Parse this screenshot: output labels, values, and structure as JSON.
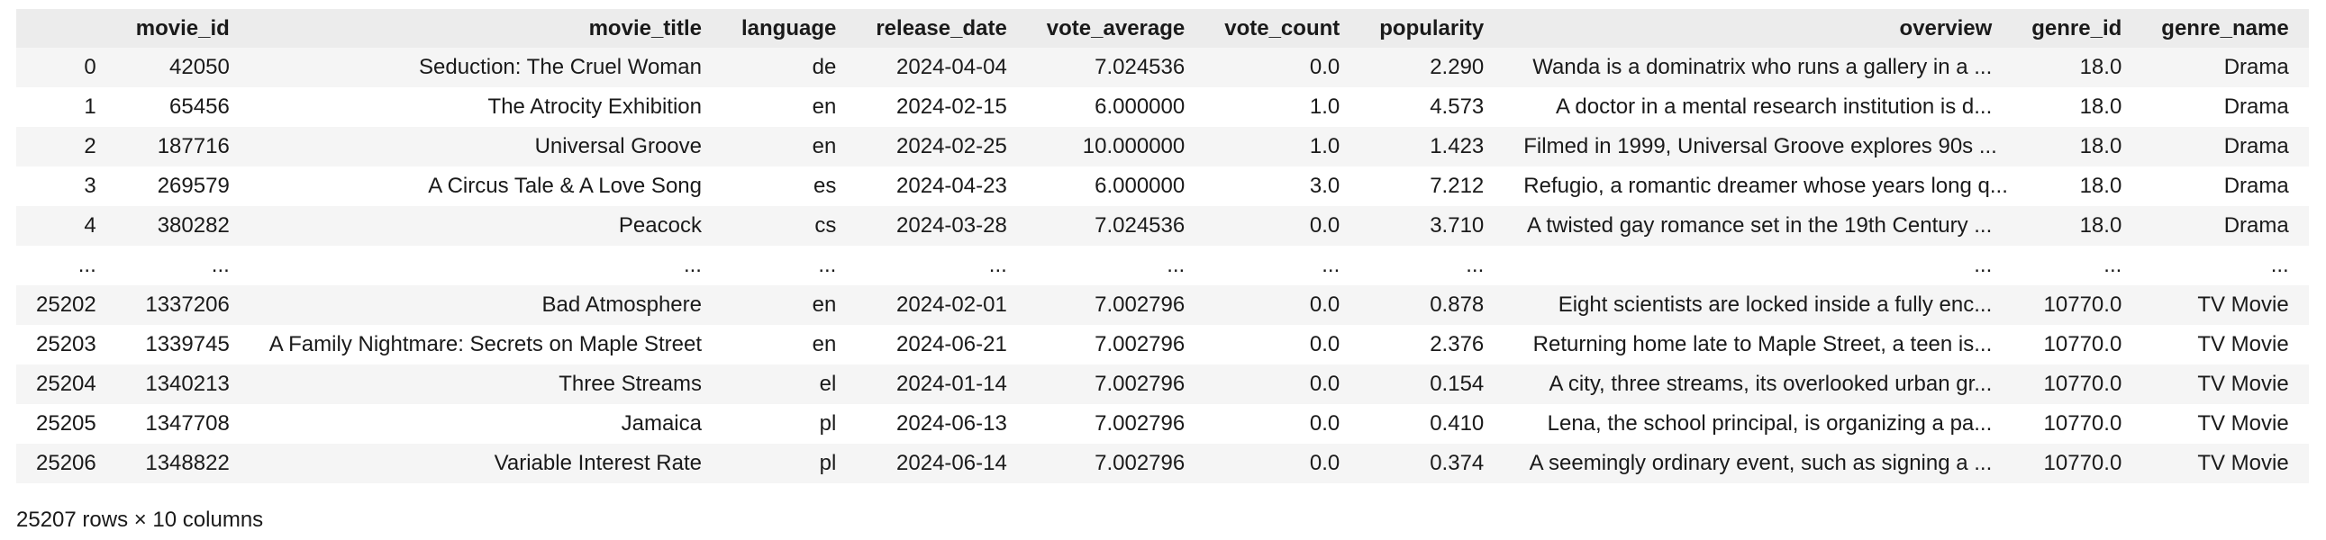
{
  "table": {
    "columns": [
      "",
      "movie_id",
      "movie_title",
      "language",
      "release_date",
      "vote_average",
      "vote_count",
      "popularity",
      "overview",
      "genre_id",
      "genre_name"
    ],
    "rows": [
      [
        "0",
        "42050",
        "Seduction: The Cruel Woman",
        "de",
        "2024-04-04",
        "7.024536",
        "0.0",
        "2.290",
        "Wanda is a dominatrix who runs a gallery in a ...",
        "18.0",
        "Drama"
      ],
      [
        "1",
        "65456",
        "The Atrocity Exhibition",
        "en",
        "2024-02-15",
        "6.000000",
        "1.0",
        "4.573",
        "A doctor in a mental research institution is d...",
        "18.0",
        "Drama"
      ],
      [
        "2",
        "187716",
        "Universal Groove",
        "en",
        "2024-02-25",
        "10.000000",
        "1.0",
        "1.423",
        "Filmed in 1999, Universal Groove explores 90s ...",
        "18.0",
        "Drama"
      ],
      [
        "3",
        "269579",
        "A Circus Tale & A Love Song",
        "es",
        "2024-04-23",
        "6.000000",
        "3.0",
        "7.212",
        "Refugio, a romantic dreamer whose years long q...",
        "18.0",
        "Drama"
      ],
      [
        "4",
        "380282",
        "Peacock",
        "cs",
        "2024-03-28",
        "7.024536",
        "0.0",
        "3.710",
        "A twisted gay romance set in the 19th Century ...",
        "18.0",
        "Drama"
      ],
      [
        "...",
        "...",
        "...",
        "...",
        "...",
        "...",
        "...",
        "...",
        "...",
        "...",
        "..."
      ],
      [
        "25202",
        "1337206",
        "Bad Atmosphere",
        "en",
        "2024-02-01",
        "7.002796",
        "0.0",
        "0.878",
        "Eight scientists are locked inside a fully enc...",
        "10770.0",
        "TV Movie"
      ],
      [
        "25203",
        "1339745",
        "A Family Nightmare: Secrets on Maple Street",
        "en",
        "2024-06-21",
        "7.002796",
        "0.0",
        "2.376",
        "Returning home late to Maple Street, a teen is...",
        "10770.0",
        "TV Movie"
      ],
      [
        "25204",
        "1340213",
        "Three Streams",
        "el",
        "2024-01-14",
        "7.002796",
        "0.0",
        "0.154",
        "A city, three streams, its overlooked urban gr...",
        "10770.0",
        "TV Movie"
      ],
      [
        "25205",
        "1347708",
        "Jamaica",
        "pl",
        "2024-06-13",
        "7.002796",
        "0.0",
        "0.410",
        "Lena, the school principal, is organizing a pa...",
        "10770.0",
        "TV Movie"
      ],
      [
        "25206",
        "1348822",
        "Variable Interest Rate",
        "pl",
        "2024-06-14",
        "7.002796",
        "0.0",
        "0.374",
        "A seemingly ordinary event, such as signing a ...",
        "10770.0",
        "TV Movie"
      ]
    ]
  },
  "shape_text": "25207 rows × 10 columns"
}
